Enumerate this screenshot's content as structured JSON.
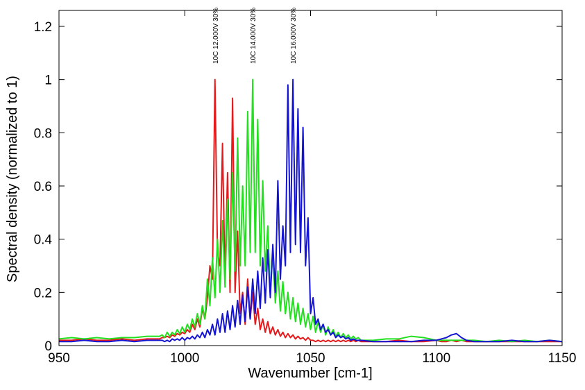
{
  "chart_data": {
    "type": "line",
    "xlabel": "Wavenumber [cm-1]",
    "ylabel": "Spectral density (normalized to 1)",
    "xlim": [
      950,
      1150
    ],
    "xticks": [
      950,
      1000,
      1050,
      1100,
      1150
    ],
    "ylim": [
      0,
      1.26
    ],
    "yticks": [
      0,
      0.2,
      0.4,
      0.6,
      0.8,
      1,
      1.2
    ],
    "annotations": [
      {
        "x": 1012,
        "text": "10C 12.000V 30%"
      },
      {
        "x": 1027,
        "text": "10C 14.000V 30%"
      },
      {
        "x": 1043,
        "text": "10C 16.000V 30%"
      }
    ],
    "x": [
      950,
      955,
      960,
      965,
      970,
      975,
      980,
      985,
      990,
      991,
      992,
      993,
      994,
      995,
      996,
      997,
      998,
      999,
      1000,
      1001,
      1002,
      1003,
      1004,
      1005,
      1006,
      1007,
      1008,
      1009,
      1010,
      1011,
      1012,
      1013,
      1014,
      1015,
      1016,
      1017,
      1018,
      1019,
      1020,
      1021,
      1022,
      1023,
      1024,
      1025,
      1026,
      1027,
      1028,
      1029,
      1030,
      1031,
      1032,
      1033,
      1034,
      1035,
      1036,
      1037,
      1038,
      1039,
      1040,
      1041,
      1042,
      1043,
      1044,
      1045,
      1046,
      1047,
      1048,
      1049,
      1050,
      1051,
      1052,
      1053,
      1054,
      1055,
      1056,
      1057,
      1058,
      1059,
      1060,
      1061,
      1062,
      1063,
      1064,
      1065,
      1066,
      1067,
      1068,
      1069,
      1070,
      1075,
      1080,
      1085,
      1090,
      1095,
      1100,
      1102,
      1104,
      1106,
      1108,
      1110,
      1112,
      1115,
      1120,
      1125,
      1130,
      1135,
      1140,
      1145,
      1150
    ],
    "series": [
      {
        "color": "#e41a1c",
        "values": [
          0.02,
          0.02,
          0.025,
          0.02,
          0.02,
          0.025,
          0.02,
          0.025,
          0.025,
          0.03,
          0.03,
          0.035,
          0.03,
          0.04,
          0.035,
          0.045,
          0.04,
          0.05,
          0.045,
          0.06,
          0.05,
          0.08,
          0.06,
          0.1,
          0.07,
          0.14,
          0.1,
          0.18,
          0.3,
          0.25,
          1.0,
          0.35,
          0.3,
          0.76,
          0.25,
          0.65,
          0.2,
          0.93,
          0.2,
          0.43,
          0.12,
          0.2,
          0.08,
          0.25,
          0.1,
          0.2,
          0.08,
          0.14,
          0.06,
          0.1,
          0.05,
          0.09,
          0.045,
          0.07,
          0.04,
          0.06,
          0.035,
          0.05,
          0.03,
          0.045,
          0.03,
          0.04,
          0.025,
          0.035,
          0.025,
          0.03,
          0.02,
          0.03,
          0.02,
          0.02,
          0.015,
          0.02,
          0.015,
          0.02,
          0.015,
          0.02,
          0.015,
          0.02,
          0.015,
          0.02,
          0.015,
          0.02,
          0.015,
          0.02,
          0.015,
          0.02,
          0.015,
          0.02,
          0.015,
          0.015,
          0.015,
          0.02,
          0.015,
          0.015,
          0.02,
          0.015,
          0.015,
          0.02,
          0.015,
          0.02,
          0.015,
          0.015,
          0.015,
          0.015,
          0.015,
          0.015,
          0.015,
          0.015,
          0.015
        ]
      },
      {
        "color": "#22e01e",
        "values": [
          0.025,
          0.03,
          0.025,
          0.03,
          0.025,
          0.03,
          0.03,
          0.035,
          0.035,
          0.04,
          0.03,
          0.05,
          0.035,
          0.05,
          0.04,
          0.06,
          0.045,
          0.07,
          0.05,
          0.08,
          0.06,
          0.1,
          0.07,
          0.12,
          0.08,
          0.15,
          0.1,
          0.25,
          0.15,
          0.33,
          0.18,
          0.4,
          0.2,
          0.47,
          0.22,
          0.55,
          0.25,
          0.65,
          0.28,
          0.78,
          0.3,
          0.6,
          0.3,
          0.88,
          0.35,
          1.0,
          0.35,
          0.85,
          0.3,
          0.62,
          0.28,
          0.45,
          0.2,
          0.35,
          0.16,
          0.28,
          0.13,
          0.24,
          0.12,
          0.2,
          0.1,
          0.18,
          0.09,
          0.16,
          0.08,
          0.14,
          0.07,
          0.12,
          0.06,
          0.11,
          0.05,
          0.09,
          0.05,
          0.08,
          0.04,
          0.07,
          0.04,
          0.06,
          0.035,
          0.05,
          0.03,
          0.045,
          0.03,
          0.04,
          0.025,
          0.035,
          0.025,
          0.03,
          0.02,
          0.02,
          0.025,
          0.025,
          0.035,
          0.03,
          0.02,
          0.02,
          0.02,
          0.02,
          0.02,
          0.02,
          0.02,
          0.02,
          0.015,
          0.02,
          0.015,
          0.02,
          0.015,
          0.02,
          0.015
        ]
      },
      {
        "color": "#1414d2",
        "values": [
          0.015,
          0.015,
          0.02,
          0.015,
          0.015,
          0.02,
          0.015,
          0.02,
          0.02,
          0.02,
          0.015,
          0.02,
          0.015,
          0.025,
          0.02,
          0.025,
          0.02,
          0.03,
          0.02,
          0.03,
          0.025,
          0.035,
          0.025,
          0.04,
          0.03,
          0.05,
          0.03,
          0.06,
          0.04,
          0.08,
          0.04,
          0.1,
          0.05,
          0.12,
          0.05,
          0.13,
          0.06,
          0.15,
          0.07,
          0.17,
          0.08,
          0.19,
          0.09,
          0.22,
          0.1,
          0.25,
          0.12,
          0.28,
          0.14,
          0.33,
          0.16,
          0.36,
          0.18,
          0.38,
          0.2,
          0.62,
          0.25,
          0.45,
          0.3,
          0.98,
          0.35,
          1.0,
          0.38,
          0.89,
          0.35,
          0.82,
          0.3,
          0.48,
          0.12,
          0.18,
          0.08,
          0.1,
          0.06,
          0.08,
          0.05,
          0.06,
          0.04,
          0.05,
          0.03,
          0.04,
          0.03,
          0.035,
          0.025,
          0.03,
          0.02,
          0.025,
          0.02,
          0.02,
          0.02,
          0.015,
          0.015,
          0.015,
          0.015,
          0.02,
          0.02,
          0.025,
          0.03,
          0.04,
          0.045,
          0.03,
          0.02,
          0.015,
          0.015,
          0.015,
          0.02,
          0.015,
          0.015,
          0.02,
          0.015
        ]
      }
    ]
  }
}
